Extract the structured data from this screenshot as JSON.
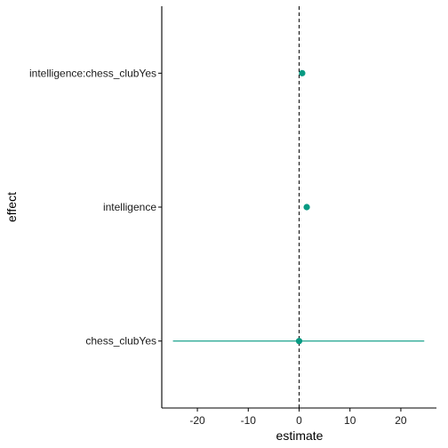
{
  "chart_data": {
    "type": "forest",
    "title": "",
    "xlabel": "estimate",
    "ylabel": "effect",
    "xlim": [
      -27,
      27
    ],
    "x_ticks": [
      -20,
      -10,
      0,
      10,
      20
    ],
    "x_tick_labels": [
      "-20",
      "-10",
      "0",
      "10",
      "20"
    ],
    "reference_line": 0,
    "grid": false,
    "legend": "none",
    "point_color": "#079a82",
    "categories": [
      "intelligence:chess_clubYes",
      "intelligence",
      "chess_clubYes"
    ],
    "points": [
      {
        "effect": "intelligence:chess_clubYes",
        "estimate": 0.6,
        "lower": 0.6,
        "upper": 0.6
      },
      {
        "effect": "intelligence",
        "estimate": 1.5,
        "lower": 1.5,
        "upper": 1.5
      },
      {
        "effect": "chess_clubYes",
        "estimate": 0.0,
        "lower": -24.8,
        "upper": 24.6
      }
    ]
  }
}
